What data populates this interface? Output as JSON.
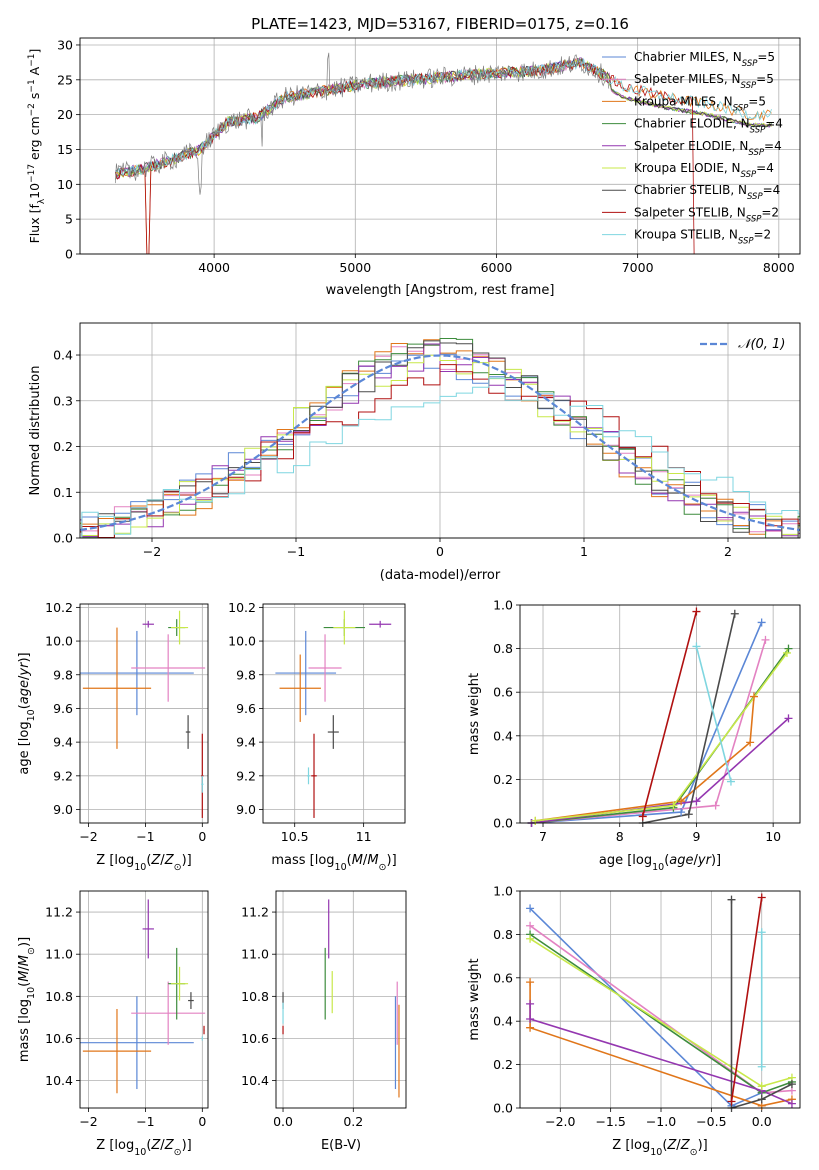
{
  "figure_title": "PLATE=1423, MJD=53167, FIBERID=0175, z=0.16",
  "models": [
    {
      "name": "Chabrier MILES, N",
      "nssp": "=5",
      "color": "#5b87d6"
    },
    {
      "name": "Salpeter MILES, N",
      "nssp": "=5",
      "color": "#e382c2"
    },
    {
      "name": "Kroupa MILES, N",
      "nssp": "=5",
      "color": "#e0761a"
    },
    {
      "name": "Chabrier ELODIE, N",
      "nssp": "=4",
      "color": "#3d8c3d"
    },
    {
      "name": "Salpeter ELODIE, N",
      "nssp": "=4",
      "color": "#9437b0"
    },
    {
      "name": "Kroupa ELODIE, N",
      "nssp": "=4",
      "color": "#c8e84a"
    },
    {
      "name": "Chabrier STELIB, N",
      "nssp": "=4",
      "color": "#4a4a4a"
    },
    {
      "name": "Salpeter STELIB, N",
      "nssp": "=2",
      "color": "#b01010"
    },
    {
      "name": "Kroupa STELIB, N",
      "nssp": "=2",
      "color": "#7fd6e0"
    }
  ],
  "chart_data": [
    {
      "id": "spectrum",
      "type": "line",
      "xlabel": "wavelength [Angstrom, rest frame]",
      "ylabel": "Flux [f",
      "xlim": [
        3050,
        8150
      ],
      "ylim": [
        0,
        31
      ],
      "xticks": [
        4000,
        5000,
        6000,
        7000,
        8000
      ],
      "yticks": [
        0,
        5,
        10,
        15,
        20,
        25,
        30
      ],
      "data_x": [
        3300,
        3400,
        3500,
        3600,
        3700,
        3800,
        3900,
        4000,
        4100,
        4200,
        4300,
        4400,
        4500,
        4600,
        4800,
        5000,
        5200,
        5400,
        5600,
        5800,
        6000,
        6200,
        6400,
        6600,
        6800
      ],
      "data_y": [
        11.5,
        12.5,
        12.0,
        12.5,
        13.5,
        14.5,
        15.5,
        18.0,
        19.5,
        20.0,
        19.0,
        21.5,
        23.0,
        23.5,
        24.0,
        24.5,
        25.0,
        25.0,
        25.5,
        25.5,
        26.0,
        26.0,
        26.5,
        27.0,
        28.0
      ],
      "model_curve_x": [
        3300,
        3500,
        3700,
        3900,
        4100,
        4300,
        4500,
        4800,
        5100,
        5400,
        5700,
        6000,
        6300,
        6600,
        6900,
        7200,
        7500,
        7800
      ],
      "model_curve_y": [
        11.5,
        12.2,
        13.5,
        15.0,
        19.0,
        19.5,
        22.5,
        23.5,
        24.5,
        25.0,
        25.5,
        26.0,
        26.3,
        27.5,
        24.0,
        22.5,
        21.5,
        20.0
      ]
    },
    {
      "id": "residual_hist",
      "type": "line",
      "xlabel": "(data-model)/error",
      "ylabel": "Normed distribution",
      "xlim": [
        -2.5,
        2.5
      ],
      "ylim": [
        0,
        0.47
      ],
      "xticks": [
        -2,
        -1,
        0,
        1,
        2
      ],
      "yticks": [
        0.0,
        0.1,
        0.2,
        0.3,
        0.4
      ],
      "legend": "𝒩(0, 1)",
      "gaussian": {
        "mu": 0,
        "sigma": 1
      }
    },
    {
      "id": "age_vs_Z",
      "type": "scatter",
      "xlabel": "Z [log",
      "ylabel": "age  [log",
      "xlim": [
        -2.15,
        0.1
      ],
      "ylim": [
        8.92,
        10.22
      ],
      "xticks": [
        -2,
        -1,
        0
      ],
      "yticks": [
        9.0,
        9.2,
        9.4,
        9.6,
        9.8,
        10.0,
        10.2
      ],
      "points": [
        {
          "m": 0,
          "x": -1.15,
          "y": 9.81,
          "xerr": 1.0,
          "yerr": 0.25
        },
        {
          "m": 1,
          "x": -0.6,
          "y": 9.84,
          "xerr": 0.65,
          "yerr": 0.2
        },
        {
          "m": 2,
          "x": -1.5,
          "y": 9.72,
          "xerr": 0.6,
          "yerr": 0.36
        },
        {
          "m": 3,
          "x": -0.45,
          "y": 10.08,
          "xerr": 0.15,
          "yerr": 0.05
        },
        {
          "m": 4,
          "x": -0.95,
          "y": 10.1,
          "xerr": 0.1,
          "yerr": 0.02
        },
        {
          "m": 5,
          "x": -0.4,
          "y": 10.08,
          "xerr": 0.15,
          "yerr": 0.1
        },
        {
          "m": 6,
          "x": -0.25,
          "y": 9.46,
          "xerr": 0.04,
          "yerr": 0.1
        },
        {
          "m": 7,
          "x": 0.0,
          "y": 9.2,
          "xerr": 0.02,
          "yerr": 0.25
        },
        {
          "m": 8,
          "x": 0.0,
          "y": 9.15,
          "xerr": 0.02,
          "yerr": 0.05
        }
      ]
    },
    {
      "id": "age_vs_mass",
      "type": "scatter",
      "xlabel": "mass [log",
      "ylabel": "",
      "xlim": [
        10.27,
        11.3
      ],
      "ylim": [
        8.92,
        10.22
      ],
      "xticks": [
        10.5,
        11.0
      ],
      "yticks": [
        9.0,
        9.2,
        9.4,
        9.6,
        9.8,
        10.0,
        10.2
      ],
      "points": [
        {
          "m": 0,
          "x": 10.58,
          "y": 9.81,
          "xerr": 0.22,
          "yerr": 0.25
        },
        {
          "m": 1,
          "x": 10.72,
          "y": 9.84,
          "xerr": 0.12,
          "yerr": 0.2
        },
        {
          "m": 2,
          "x": 10.54,
          "y": 9.72,
          "xerr": 0.15,
          "yerr": 0.2
        },
        {
          "m": 3,
          "x": 10.86,
          "y": 10.08,
          "xerr": 0.15,
          "yerr": 0.05
        },
        {
          "m": 4,
          "x": 11.12,
          "y": 10.1,
          "xerr": 0.08,
          "yerr": 0.02
        },
        {
          "m": 5,
          "x": 10.86,
          "y": 10.08,
          "xerr": 0.08,
          "yerr": 0.1
        },
        {
          "m": 6,
          "x": 10.78,
          "y": 9.46,
          "xerr": 0.04,
          "yerr": 0.1
        },
        {
          "m": 7,
          "x": 10.64,
          "y": 9.2,
          "xerr": 0.02,
          "yerr": 0.25
        },
        {
          "m": 8,
          "x": 10.6,
          "y": 9.2,
          "xerr": 0.01,
          "yerr": 0.05
        }
      ]
    },
    {
      "id": "mass_weight_vs_age",
      "type": "line",
      "xlabel": "age  [log",
      "ylabel": "mass weight",
      "xlim": [
        6.7,
        10.35
      ],
      "ylim": [
        0,
        1
      ],
      "xticks": [
        7,
        8,
        9,
        10
      ],
      "yticks": [
        0.0,
        0.2,
        0.4,
        0.6,
        0.8,
        1.0
      ],
      "series": [
        {
          "m": 0,
          "x": [
            6.85,
            8.8,
            9.85
          ],
          "y": [
            0.0,
            0.05,
            0.92
          ]
        },
        {
          "m": 1,
          "x": [
            6.85,
            9.25,
            9.9
          ],
          "y": [
            0.0,
            0.08,
            0.84
          ]
        },
        {
          "m": 2,
          "x": [
            6.9,
            8.8,
            9.7,
            9.75
          ],
          "y": [
            0.01,
            0.1,
            0.37,
            0.58
          ]
        },
        {
          "m": 3,
          "x": [
            6.85,
            8.7,
            10.2
          ],
          "y": [
            0.0,
            0.07,
            0.8
          ]
        },
        {
          "m": 4,
          "x": [
            6.85,
            9.0,
            10.2
          ],
          "y": [
            0.0,
            0.1,
            0.48
          ]
        },
        {
          "m": 5,
          "x": [
            6.9,
            8.7,
            10.18
          ],
          "y": [
            0.01,
            0.08,
            0.78
          ]
        },
        {
          "m": 6,
          "x": [
            8.3,
            8.9,
            9.5
          ],
          "y": [
            0.0,
            0.04,
            0.96
          ]
        },
        {
          "m": 7,
          "x": [
            8.3,
            9.0
          ],
          "y": [
            0.03,
            0.97
          ]
        },
        {
          "m": 8,
          "x": [
            9.0,
            9.45
          ],
          "y": [
            0.81,
            0.19
          ]
        }
      ]
    },
    {
      "id": "mass_vs_Z",
      "type": "scatter",
      "xlabel": "Z [log",
      "ylabel": "mass [log",
      "xlim": [
        -2.15,
        0.1
      ],
      "ylim": [
        10.27,
        11.3
      ],
      "xticks": [
        -2,
        -1,
        0
      ],
      "yticks": [
        10.4,
        10.6,
        10.8,
        11.0,
        11.2
      ],
      "points": [
        {
          "m": 0,
          "x": -1.15,
          "y": 10.58,
          "xerr": 1.0,
          "yerr": 0.22
        },
        {
          "m": 1,
          "x": -0.6,
          "y": 10.72,
          "xerr": 0.65,
          "yerr": 0.15
        },
        {
          "m": 2,
          "x": -1.5,
          "y": 10.54,
          "xerr": 0.6,
          "yerr": 0.2
        },
        {
          "m": 3,
          "x": -0.45,
          "y": 10.86,
          "xerr": 0.15,
          "yerr": 0.17
        },
        {
          "m": 4,
          "x": -0.95,
          "y": 11.12,
          "xerr": 0.1,
          "yerr": 0.14
        },
        {
          "m": 5,
          "x": -0.4,
          "y": 10.86,
          "xerr": 0.15,
          "yerr": 0.08
        },
        {
          "m": 6,
          "x": -0.2,
          "y": 10.78,
          "xerr": 0.05,
          "yerr": 0.04
        },
        {
          "m": 7,
          "x": 0.03,
          "y": 10.64,
          "xerr": 0.01,
          "yerr": 0.02
        },
        {
          "m": 8,
          "x": 0.0,
          "y": 10.6,
          "xerr": 0.01,
          "yerr": 0.01
        }
      ]
    },
    {
      "id": "mass_vs_ebv",
      "type": "scatter",
      "xlabel": "E(B-V)",
      "ylabel": "",
      "xlim": [
        -0.02,
        0.35
      ],
      "ylim": [
        10.27,
        11.3
      ],
      "xticks": [
        0.0,
        0.2
      ],
      "yticks": [
        10.4,
        10.6,
        10.8,
        11.0,
        11.2
      ],
      "points": [
        {
          "m": 0,
          "x": 0.32,
          "y": 10.58,
          "xerr": 0.0,
          "yerr": 0.22
        },
        {
          "m": 1,
          "x": 0.325,
          "y": 10.72,
          "xerr": 0.0,
          "yerr": 0.15
        },
        {
          "m": 2,
          "x": 0.33,
          "y": 10.54,
          "xerr": 0.0,
          "yerr": 0.22
        },
        {
          "m": 3,
          "x": 0.12,
          "y": 10.86,
          "xerr": 0.0,
          "yerr": 0.17
        },
        {
          "m": 4,
          "x": 0.13,
          "y": 11.12,
          "xerr": 0.0,
          "yerr": 0.14
        },
        {
          "m": 5,
          "x": 0.14,
          "y": 10.82,
          "xerr": 0.0,
          "yerr": 0.1
        },
        {
          "m": 6,
          "x": 0.0,
          "y": 10.78,
          "xerr": 0.0,
          "yerr": 0.04
        },
        {
          "m": 7,
          "x": 0.0,
          "y": 10.64,
          "xerr": 0.0,
          "yerr": 0.02
        },
        {
          "m": 8,
          "x": 0.0,
          "y": 10.72,
          "xerr": 0.0,
          "yerr": 0.05
        }
      ]
    },
    {
      "id": "mass_weight_vs_Z",
      "type": "line",
      "xlabel": "Z [log",
      "ylabel": "mass weight",
      "xlim": [
        -2.4,
        0.38
      ],
      "ylim": [
        0,
        1
      ],
      "xticks": [
        -2.0,
        -1.5,
        -1.0,
        -0.5,
        0.0
      ],
      "yticks": [
        0.0,
        0.2,
        0.4,
        0.6,
        0.8,
        1.0
      ],
      "series": [
        {
          "m": 0,
          "x": [
            -2.3,
            -0.3,
            0.0
          ],
          "y": [
            0.92,
            0.01,
            0.07
          ]
        },
        {
          "m": 1,
          "x": [
            -2.3,
            0.0,
            0.3
          ],
          "y": [
            0.84,
            0.07,
            0.08
          ]
        },
        {
          "m": 2,
          "x": [
            -2.3,
            -2.3,
            0.0,
            0.3
          ],
          "y": [
            0.58,
            0.37,
            0.01,
            0.04
          ]
        },
        {
          "m": 3,
          "x": [
            -2.3,
            0.0,
            0.3
          ],
          "y": [
            0.8,
            0.07,
            0.12
          ]
        },
        {
          "m": 4,
          "x": [
            -2.3,
            -2.3,
            0.0,
            0.3
          ],
          "y": [
            0.48,
            0.41,
            0.08,
            0.02
          ]
        },
        {
          "m": 5,
          "x": [
            -2.3,
            0.0,
            0.3
          ],
          "y": [
            0.78,
            0.1,
            0.14
          ]
        },
        {
          "m": 6,
          "x": [
            -0.3,
            -0.3,
            0.0,
            0.3
          ],
          "y": [
            0.96,
            0.0,
            0.04,
            0.11
          ]
        },
        {
          "m": 7,
          "x": [
            -0.3,
            0.0
          ],
          "y": [
            0.03,
            0.97
          ]
        },
        {
          "m": 8,
          "x": [
            0.0,
            0.0
          ],
          "y": [
            0.81,
            0.19
          ]
        }
      ]
    }
  ]
}
